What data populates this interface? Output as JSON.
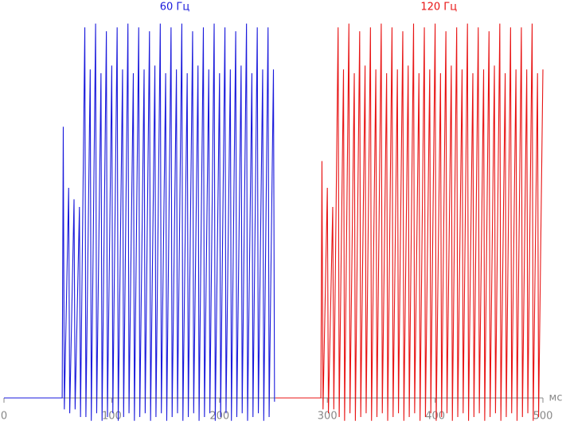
{
  "chart_data": {
    "type": "line",
    "x_label": "мс",
    "xlim": [
      0,
      500
    ],
    "xticks": [
      0,
      100,
      200,
      300,
      400,
      500
    ],
    "ylim": [
      -7,
      100
    ],
    "series": [
      {
        "name": "60 Гц",
        "color": "#1a1adc",
        "x": [
          0,
          54,
          55,
          56,
          60,
          61,
          65,
          66,
          70,
          71,
          75,
          76,
          80,
          81,
          85,
          86,
          90,
          91,
          95,
          96,
          100,
          101,
          105,
          106,
          110,
          111,
          115,
          116,
          120,
          121,
          125,
          126,
          130,
          131,
          135,
          136,
          140,
          141,
          145,
          146,
          150,
          151,
          155,
          156,
          160,
          161,
          165,
          166,
          170,
          171,
          175,
          176,
          180,
          181,
          185,
          186,
          190,
          191,
          195,
          196,
          200,
          201,
          205,
          206,
          210,
          211,
          215,
          216,
          220,
          221,
          225,
          226,
          230,
          231,
          235,
          236,
          240,
          241,
          245,
          246,
          250,
          251
        ],
        "values": [
          0,
          0,
          71,
          -3,
          55,
          -4,
          52,
          -3,
          50,
          -5,
          97,
          -5,
          86,
          -6,
          98,
          -4,
          85,
          -6,
          96,
          -5,
          87,
          -4,
          97,
          -6,
          86,
          -5,
          98,
          -4,
          85,
          -6,
          97,
          -5,
          86,
          -4,
          96,
          -6,
          87,
          -5,
          98,
          -4,
          85,
          -6,
          97,
          -5,
          86,
          -4,
          98,
          -6,
          85,
          -5,
          96,
          -4,
          87,
          -6,
          97,
          -5,
          86,
          -4,
          98,
          -6,
          85,
          -5,
          97,
          -4,
          86,
          -6,
          96,
          -5,
          87,
          -4,
          98,
          -6,
          85,
          -5,
          97,
          -4,
          86,
          -6,
          97,
          -5,
          86,
          -1
        ]
      },
      {
        "name": "120 Гц",
        "color": "#e81414",
        "x": [
          252,
          294,
          295,
          296,
          300,
          301,
          305,
          306,
          310,
          311,
          315,
          316,
          320,
          321,
          325,
          326,
          330,
          331,
          335,
          336,
          340,
          341,
          345,
          346,
          350,
          351,
          355,
          356,
          360,
          361,
          365,
          366,
          370,
          371,
          375,
          376,
          380,
          381,
          385,
          386,
          390,
          391,
          395,
          396,
          400,
          401,
          405,
          406,
          410,
          411,
          415,
          416,
          420,
          421,
          425,
          426,
          430,
          431,
          435,
          436,
          440,
          441,
          445,
          446,
          450,
          451,
          455,
          456,
          460,
          461,
          465,
          466,
          470,
          471,
          475,
          476,
          480,
          481,
          485,
          486,
          490,
          491,
          495,
          496,
          500
        ],
        "values": [
          0,
          0,
          62,
          -3,
          55,
          -4,
          50,
          -3,
          97,
          -5,
          86,
          -6,
          98,
          -4,
          85,
          -6,
          96,
          -5,
          87,
          -4,
          97,
          -6,
          86,
          -5,
          98,
          -4,
          85,
          -6,
          97,
          -5,
          86,
          -4,
          96,
          -6,
          87,
          -5,
          98,
          -4,
          85,
          -6,
          97,
          -5,
          86,
          -4,
          98,
          -6,
          85,
          -5,
          96,
          -4,
          87,
          -6,
          97,
          -5,
          86,
          -4,
          98,
          -6,
          85,
          -5,
          97,
          -4,
          86,
          -6,
          96,
          -5,
          87,
          -4,
          98,
          -6,
          85,
          -5,
          97,
          -4,
          86,
          -6,
          97,
          -5,
          86,
          -4,
          98,
          -6,
          85,
          -5,
          86
        ]
      }
    ]
  }
}
